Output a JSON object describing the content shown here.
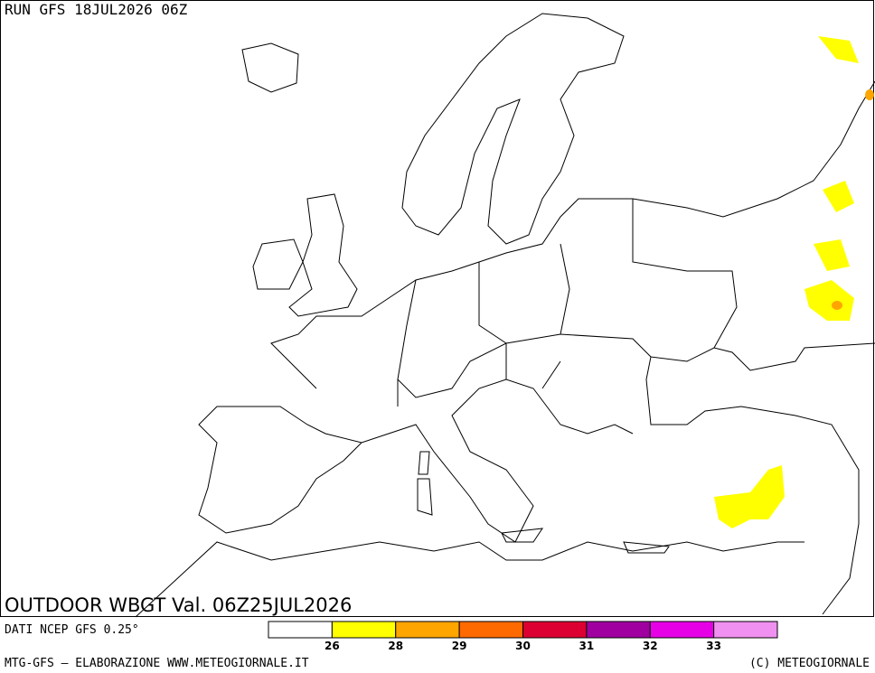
{
  "header": {
    "run": "RUN GFS 18JUL2026 06Z"
  },
  "map": {
    "title": "OUTDOOR WBGT Val. 06Z25JUL2026"
  },
  "footer": {
    "source": "DATI NCEP GFS 0.25°",
    "credit": "MTG-GFS — ELABORAZIONE WWW.METEOGIORNALE.IT",
    "copyright": "(C) METEOGIORNALE"
  },
  "legend": {
    "colors": [
      "#ffffff",
      "#ffff00",
      "#ffa500",
      "#ff6a00",
      "#dc0032",
      "#a000a0",
      "#e600e6",
      "#f090f0"
    ],
    "labels": [
      "26",
      "28",
      "29",
      "30",
      "31",
      "32",
      "33"
    ]
  }
}
